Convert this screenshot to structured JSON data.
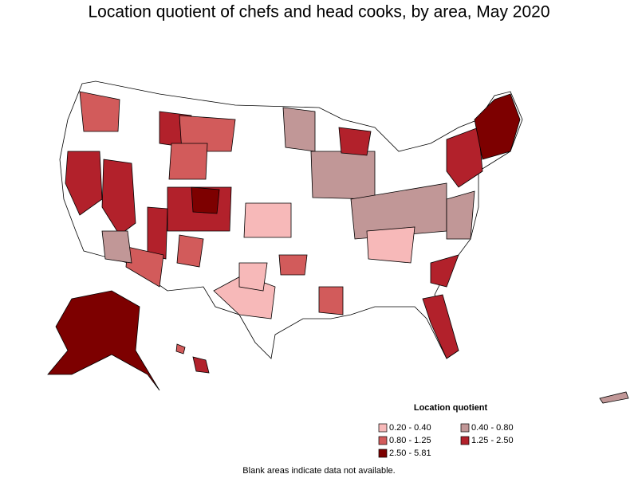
{
  "title": "Location quotient of chefs and head cooks, by area, May 2020",
  "legend": {
    "title": "Location quotient",
    "items": [
      {
        "label": "0.20 - 0.40",
        "color": "#f7b9b9"
      },
      {
        "label": "0.40 - 0.80",
        "color": "#c19797"
      },
      {
        "label": "0.80 - 1.25",
        "color": "#d25b5b"
      },
      {
        "label": "1.25 - 2.50",
        "color": "#b2212b"
      },
      {
        "label": "2.50 - 5.81",
        "color": "#7d0000"
      }
    ]
  },
  "footnote": "Blank areas indicate data not available."
}
